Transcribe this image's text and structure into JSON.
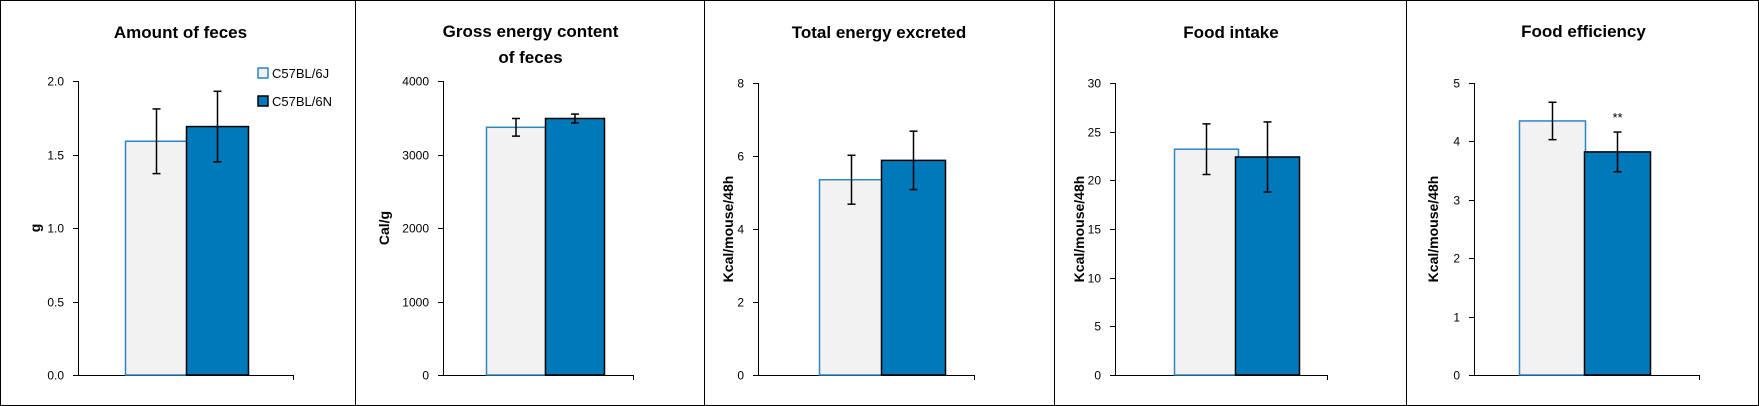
{
  "colors": {
    "c57bl6j_fill": "#f2f2f2",
    "c57bl6j_edge": "#2e86c1",
    "c57bl6n_fill": "#0079bb",
    "c57bl6n_edge": "#000000",
    "axis": "#000000",
    "border": "#000000"
  },
  "legend": {
    "items": [
      {
        "label": "C57BL/6J",
        "series": 0
      },
      {
        "label": "C57BL/6N",
        "series": 1
      }
    ],
    "placement": "top-right of first panel"
  },
  "chart_data": [
    {
      "type": "bar",
      "title": [
        "Amount of feces"
      ],
      "ylabel": "g",
      "ylim": [
        0,
        2.0
      ],
      "yticks": [
        "0.0",
        "0.5",
        "1.0",
        "1.5",
        "2.0"
      ],
      "ytick_values": [
        0,
        0.5,
        1.0,
        1.5,
        2.0
      ],
      "categories": [
        "C57BL/6J",
        "C57BL/6N"
      ],
      "values": [
        1.59,
        1.69
      ],
      "errors": [
        0.22,
        0.24
      ],
      "annotations": [
        "",
        ""
      ],
      "grid": false
    },
    {
      "type": "bar",
      "title": [
        "Gross energy content",
        "of feces"
      ],
      "ylabel": "Cal/g",
      "ylim": [
        0,
        4000
      ],
      "yticks": [
        "0",
        "1000",
        "2000",
        "3000",
        "4000"
      ],
      "ytick_values": [
        0,
        1000,
        2000,
        3000,
        4000
      ],
      "categories": [
        "C57BL/6J",
        "C57BL/6N"
      ],
      "values": [
        3370,
        3490
      ],
      "errors": [
        120,
        60
      ],
      "annotations": [
        "",
        ""
      ],
      "grid": false
    },
    {
      "type": "bar",
      "title": [
        "Total energy excreted"
      ],
      "ylabel": "Kcal/mouse/48h",
      "ylim": [
        0,
        8
      ],
      "yticks": [
        "0",
        "2",
        "4",
        "6",
        "8"
      ],
      "ytick_values": [
        0,
        2,
        4,
        6,
        8
      ],
      "categories": [
        "C57BL/6J",
        "C57BL/6N"
      ],
      "values": [
        5.35,
        5.88
      ],
      "errors": [
        0.67,
        0.8
      ],
      "annotations": [
        "",
        ""
      ],
      "grid": false
    },
    {
      "type": "bar",
      "title": [
        "Food intake"
      ],
      "ylabel": "Kcal/mouse/48h",
      "ylim": [
        0,
        30
      ],
      "yticks": [
        "0",
        "5",
        "10",
        "15",
        "20",
        "25",
        "30"
      ],
      "ytick_values": [
        0,
        5,
        10,
        15,
        20,
        25,
        30
      ],
      "categories": [
        "C57BL/6J",
        "C57BL/6N"
      ],
      "values": [
        23.2,
        22.4
      ],
      "errors": [
        2.6,
        3.6
      ],
      "annotations": [
        "",
        ""
      ],
      "grid": false
    },
    {
      "type": "bar",
      "title": [
        "Food efficiency"
      ],
      "ylabel": "Kcal/mouse/48h",
      "ylim": [
        0,
        5
      ],
      "yticks": [
        "0",
        "1",
        "2",
        "3",
        "4",
        "5"
      ],
      "ytick_values": [
        0,
        1,
        2,
        3,
        4,
        5
      ],
      "categories": [
        "C57BL/6J",
        "C57BL/6N"
      ],
      "values": [
        4.35,
        3.82
      ],
      "errors": [
        0.32,
        0.34
      ],
      "annotations": [
        "",
        "**"
      ],
      "grid": false
    }
  ]
}
